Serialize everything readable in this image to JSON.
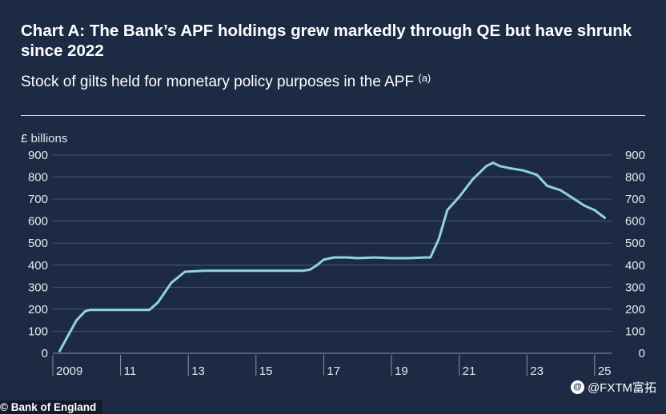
{
  "header": {
    "title": "Chart A: The Bank’s APF holdings grew markedly through QE but have shrunk since 2022",
    "subtitle": "Stock of gilts held for monetary policy purposes in the APF",
    "footnote_marker": "(a)"
  },
  "footer": {
    "source": "© Bank of England",
    "watermark": "@FXTM富拓",
    "watermark_icon": "weibo-icon"
  },
  "colors": {
    "background": "#1c2a44",
    "line": "#8fd3de",
    "grid": "#4a5670",
    "text": "#ffffff"
  },
  "chart_data": {
    "type": "line",
    "title": "Chart A: The Bank’s APF holdings grew markedly through QE but have shrunk since 2022",
    "subtitle": "Stock of gilts held for monetary policy purposes in the APF",
    "ylabel": "£ billions",
    "xlabel": "",
    "ylim": [
      0,
      900
    ],
    "xlim": [
      2009.0,
      2025.5
    ],
    "y_ticks": [
      0,
      100,
      200,
      300,
      400,
      500,
      600,
      700,
      800,
      900
    ],
    "x_ticks": [
      {
        "value": 2009,
        "label": "2009"
      },
      {
        "value": 2011,
        "label": "11"
      },
      {
        "value": 2013,
        "label": "13"
      },
      {
        "value": 2015,
        "label": "15"
      },
      {
        "value": 2017,
        "label": "17"
      },
      {
        "value": 2019,
        "label": "19"
      },
      {
        "value": 2021,
        "label": "21"
      },
      {
        "value": 2023,
        "label": "23"
      },
      {
        "value": 2025,
        "label": "25"
      }
    ],
    "grid": true,
    "y_axis_both_sides": true,
    "series": [
      {
        "name": "",
        "x": [
          2009.2,
          2009.45,
          2009.7,
          2009.95,
          2010.1,
          2010.5,
          2011.0,
          2011.5,
          2011.85,
          2012.1,
          2012.5,
          2012.9,
          2013.5,
          2014.0,
          2014.5,
          2015.0,
          2015.5,
          2016.0,
          2016.4,
          2016.6,
          2016.8,
          2017.0,
          2017.3,
          2017.7,
          2018.0,
          2018.5,
          2019.0,
          2019.5,
          2020.0,
          2020.15,
          2020.4,
          2020.65,
          2021.0,
          2021.4,
          2021.8,
          2022.0,
          2022.2,
          2022.5,
          2022.9,
          2023.3,
          2023.6,
          2024.0,
          2024.4,
          2024.7,
          2025.0,
          2025.3
        ],
        "y": [
          10,
          80,
          150,
          190,
          197,
          197,
          197,
          197,
          197,
          230,
          320,
          370,
          375,
          375,
          375,
          375,
          375,
          375,
          375,
          380,
          400,
          425,
          435,
          435,
          432,
          435,
          432,
          432,
          435,
          435,
          520,
          650,
          710,
          790,
          850,
          865,
          850,
          840,
          830,
          810,
          760,
          740,
          700,
          670,
          650,
          615
        ]
      }
    ]
  }
}
